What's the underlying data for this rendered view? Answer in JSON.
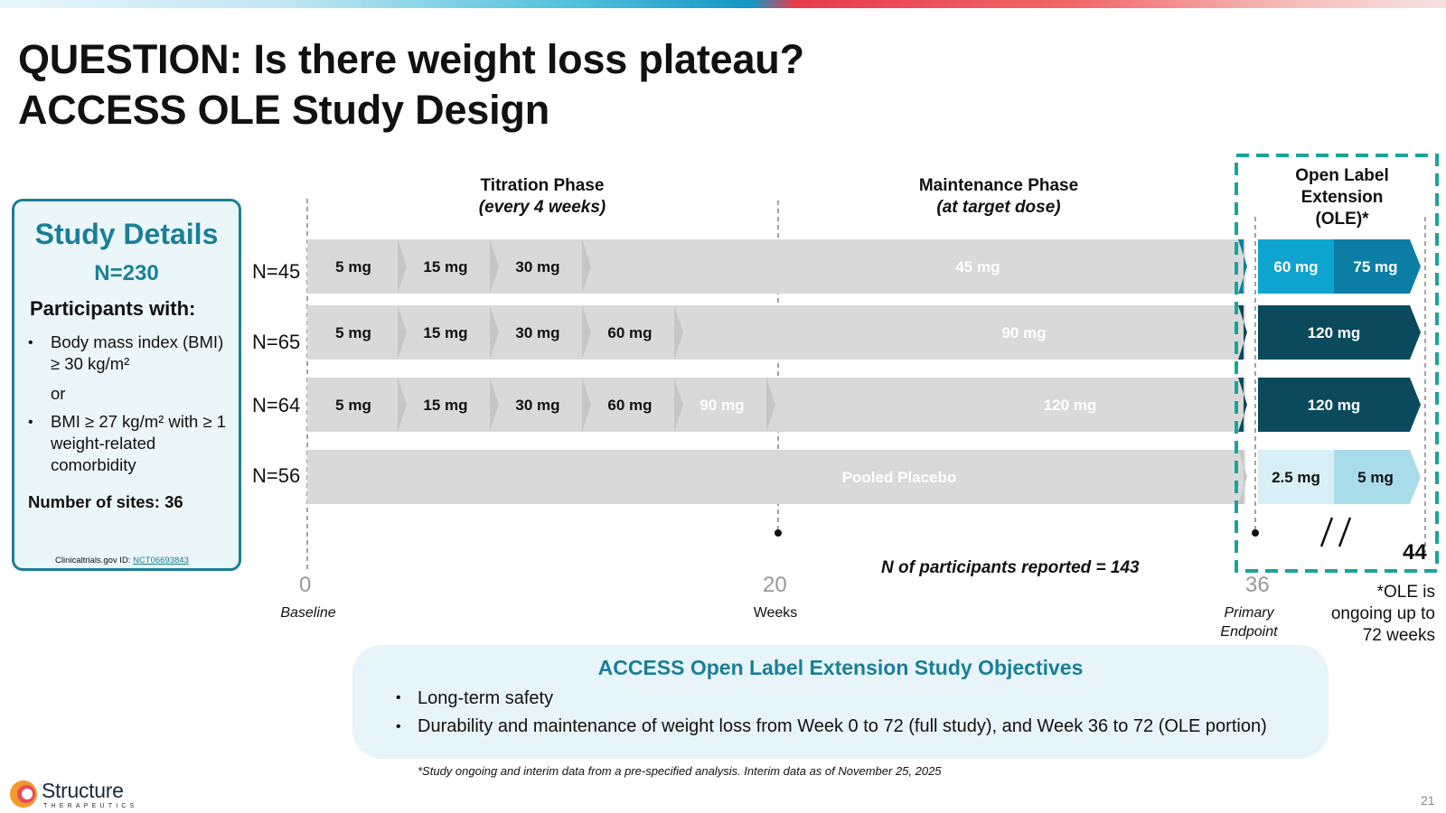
{
  "title_line1": "QUESTION: Is there weight loss plateau?",
  "title_line2": "ACCESS OLE Study Design",
  "study_details": {
    "heading": "Study Details",
    "n": "N=230",
    "participants_with": "Participants with:",
    "bullet1": "Body mass index (BMI) ≥ 30 kg/m²",
    "or": "or",
    "bullet2": "BMI ≥ 27 kg/m² with ≥ 1 weight-related comorbidity",
    "sites": "Number of sites: 36",
    "ct_prefix": "Clinicaltrials.gov ID: ",
    "ct_id": "NCT06693843"
  },
  "phases": {
    "titration": "Titration Phase",
    "titration_sub": "(every 4 weeks)",
    "maintenance": "Maintenance Phase",
    "maintenance_sub": "(at target dose)",
    "ole_line1": "Open Label",
    "ole_line2": "Extension",
    "ole_line3": "(OLE)*"
  },
  "arms": [
    {
      "n": "N=45",
      "titration": [
        "5 mg",
        "15 mg",
        "30 mg"
      ],
      "maintenance": "45 mg",
      "ole": [
        "60 mg",
        "75 mg"
      ]
    },
    {
      "n": "N=65",
      "titration": [
        "5 mg",
        "15 mg",
        "30 mg",
        "60 mg"
      ],
      "maintenance": "90 mg",
      "ole": [
        "120 mg"
      ]
    },
    {
      "n": "N=64",
      "titration": [
        "5 mg",
        "15 mg",
        "30 mg",
        "60 mg",
        "90 mg"
      ],
      "maintenance": "120 mg",
      "ole": [
        "120 mg"
      ]
    },
    {
      "n": "N=56",
      "titration": [],
      "maintenance": "Pooled Placebo",
      "ole": [
        "2.5 mg",
        "5 mg"
      ]
    }
  ],
  "axis": {
    "week0": "0",
    "week0_label": "Baseline",
    "week20": "20",
    "week20_label": "Weeks",
    "week36": "36",
    "week36_label": "Primary Endpoint",
    "week44": "44"
  },
  "reported": "N of participants reported = 143",
  "ole_note": "*OLE is ongoing up to 72 weeks",
  "objectives": {
    "title": "ACCESS Open Label Extension Study Objectives",
    "items": [
      "Long-term safety",
      "Durability and maintenance of weight loss from Week 0 to 72 (full study), and Week 36 to 72 (OLE portion)"
    ]
  },
  "footnote": "*Study ongoing and interim data from a pre-specified analysis. Interim data as of November 25, 2025",
  "logo": {
    "name": "Structure",
    "sub": "THERAPEUTICS"
  },
  "page_number": "21",
  "colors": {
    "teal": "#1a7f96",
    "ole_light": "#0ea4cf",
    "ole_mid": "#0c7ea6",
    "ole_dark": "#0b4a5c",
    "placebo_ole_light": "#d9eff6",
    "placebo_ole_mid": "#a9dcea",
    "bar": "#d9d9d9",
    "bar_edge": "#c6c6c6"
  }
}
